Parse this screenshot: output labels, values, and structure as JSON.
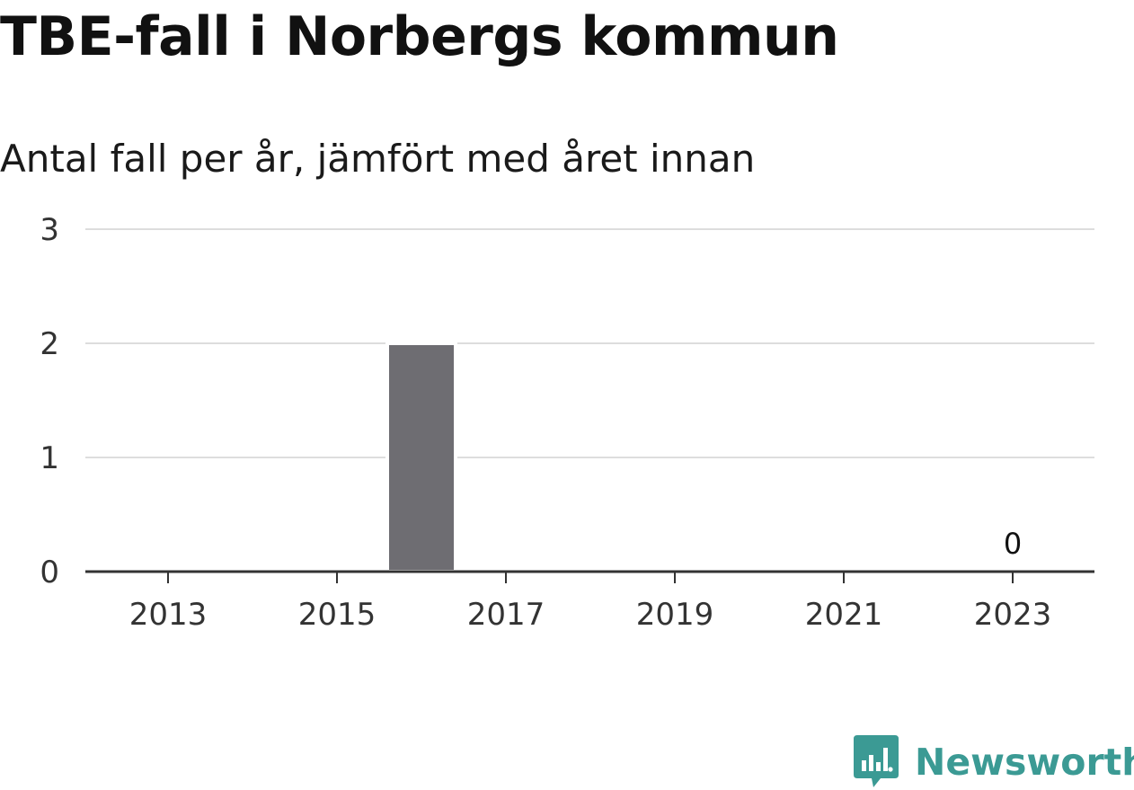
{
  "title": "TBE-fall i Norbergs kommun",
  "subtitle": "Antal fall per år, jämfört med året innan",
  "chart_data": {
    "type": "bar",
    "categories": [
      "2013",
      "2014",
      "2015",
      "2016",
      "2017",
      "2018",
      "2019",
      "2020",
      "2021",
      "2022",
      "2023"
    ],
    "values": [
      0,
      0,
      0,
      2,
      0,
      0,
      0,
      0,
      0,
      0,
      0
    ],
    "x_tick_labels": [
      "2013",
      "2015",
      "2017",
      "2019",
      "2021",
      "2023"
    ],
    "y_ticks": [
      "0",
      "1",
      "2",
      "3"
    ],
    "ylim": [
      0,
      3
    ],
    "data_labels": [
      {
        "category": "2023",
        "text": "0"
      }
    ],
    "grid": true,
    "bar_color": "#6e6d72"
  },
  "brand": {
    "name": "Newsworthy",
    "icon": "bar-chart-speech-bubble-icon",
    "color": "#3b9a94"
  }
}
